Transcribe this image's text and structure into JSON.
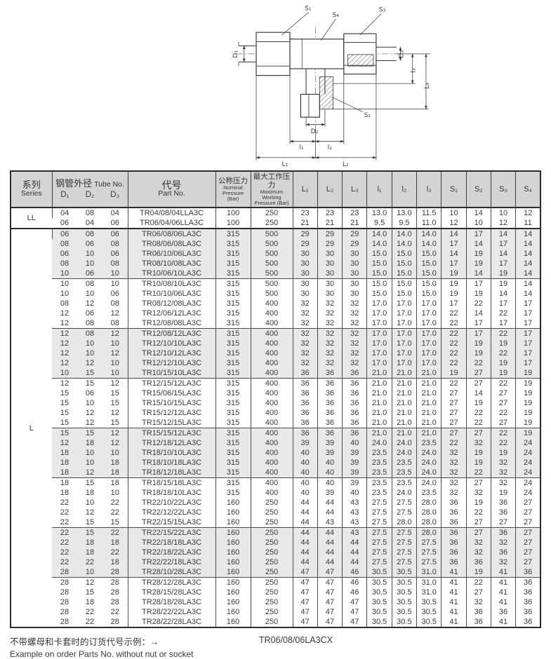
{
  "diagram": {
    "name": "tee-fitting-technical-drawing",
    "labels": {
      "s1": "S₁",
      "s2": "S₂",
      "s3": "S₃",
      "s4": "S₄",
      "d1": "D₁",
      "d2": "D₂",
      "d3": "D₃",
      "small_l1": "l₁",
      "small_l2": "l₂",
      "small_l3": "l₃",
      "big_l1": "L₁",
      "big_l2": "L₂",
      "big_l3": "L₃"
    }
  },
  "colors": {
    "header_bg": "#d4d4d4",
    "shaded_row_bg": "#e8e8e8",
    "border_dark": "#2b2b2b",
    "border_light": "#4a4a4a",
    "text": "#3a3a3a"
  },
  "table": {
    "header": {
      "series_zh": "系列",
      "series_en": "Series",
      "tube_zh": "钢管外径",
      "tube_en": "Tube No.",
      "d1": "D₁",
      "d2": "D₂",
      "d3": "D₃",
      "part_zh": "代号",
      "part_en": "Part No.",
      "nominal_zh": "公称压力",
      "nominal_en": "Nominal Pressure (Bar)",
      "max_zh": "最大工作压力",
      "max_en": "Maximum Working Pressure (Bar)",
      "dims": [
        "L₁",
        "L₂",
        "L₃",
        "l₁",
        "l₂",
        "l₃",
        "S₁",
        "S₂",
        "S₃",
        "S₄"
      ]
    },
    "sections": [
      {
        "series": "LL",
        "groups": [
          {
            "shaded": false,
            "rows": [
              [
                "04",
                "08",
                "04",
                "TR04/08/04LLA3C",
                "100",
                "250",
                "23",
                "23",
                "23",
                "13.0",
                "13.0",
                "11.5",
                "10",
                "14",
                "10",
                "12"
              ],
              [
                "06",
                "04",
                "06",
                "TR06/04/06LLA3C",
                "100",
                "250",
                "21",
                "21",
                "21",
                "9.5",
                "9.5",
                "11.0",
                "12",
                "10",
                "12",
                "11"
              ]
            ]
          }
        ]
      },
      {
        "series": "L",
        "groups": [
          {
            "shaded": true,
            "rows": [
              [
                "06",
                "08",
                "06",
                "TR06/08/06LA3C",
                "315",
                "500",
                "29",
                "29",
                "29",
                "14.0",
                "14.0",
                "14.0",
                "14",
                "17",
                "14",
                "14"
              ],
              [
                "08",
                "06",
                "08",
                "TR08/06/08LA3C",
                "315",
                "500",
                "29",
                "29",
                "29",
                "14.0",
                "14.0",
                "14.0",
                "17",
                "14",
                "17",
                "14"
              ],
              [
                "06",
                "10",
                "06",
                "TR06/10/06LA3C",
                "315",
                "500",
                "30",
                "30",
                "30",
                "15.0",
                "15.0",
                "15.0",
                "14",
                "19",
                "14",
                "14"
              ],
              [
                "08",
                "10",
                "08",
                "TR08/10/08LA3C",
                "315",
                "500",
                "30",
                "30",
                "30",
                "15.0",
                "15.0",
                "15.0",
                "17",
                "19",
                "17",
                "14"
              ],
              [
                "10",
                "06",
                "10",
                "TR10/06/10LA3C",
                "315",
                "500",
                "30",
                "30",
                "30",
                "15.0",
                "15.0",
                "15.0",
                "19",
                "14",
                "19",
                "14"
              ]
            ]
          },
          {
            "shaded": false,
            "rows": [
              [
                "10",
                "08",
                "10",
                "TR10/08/10LA3C",
                "315",
                "500",
                "30",
                "30",
                "30",
                "15.0",
                "15.0",
                "15.0",
                "19",
                "17",
                "19",
                "14"
              ],
              [
                "10",
                "10",
                "06",
                "TR10/10/06LA3C",
                "315",
                "500",
                "30",
                "30",
                "30",
                "15.0",
                "15.0",
                "15.0",
                "19",
                "19",
                "14",
                "14"
              ],
              [
                "08",
                "12",
                "08",
                "TR08/12/08LA3C",
                "315",
                "400",
                "32",
                "32",
                "32",
                "17.0",
                "17.0",
                "17.0",
                "17",
                "22",
                "17",
                "17"
              ],
              [
                "12",
                "06",
                "12",
                "TR12/06/12LA3C",
                "315",
                "400",
                "32",
                "32",
                "32",
                "17.0",
                "17.0",
                "17.0",
                "22",
                "14",
                "22",
                "17"
              ],
              [
                "12",
                "08",
                "08",
                "TR12/08/08LA3C",
                "315",
                "400",
                "32",
                "32",
                "32",
                "17.0",
                "17.0",
                "17.0",
                "22",
                "17",
                "17",
                "17"
              ]
            ]
          },
          {
            "shaded": true,
            "rows": [
              [
                "12",
                "08",
                "12",
                "TR12/08/12LA3C",
                "315",
                "400",
                "32",
                "32",
                "32",
                "17.0",
                "17.0",
                "17.0",
                "22",
                "17",
                "22",
                "17"
              ],
              [
                "12",
                "10",
                "10",
                "TR12/10/10LA3C",
                "315",
                "400",
                "32",
                "32",
                "32",
                "17.0",
                "17.0",
                "17.0",
                "22",
                "19",
                "19",
                "17"
              ],
              [
                "12",
                "10",
                "12",
                "TR12/10/12LA3C",
                "315",
                "400",
                "32",
                "32",
                "32",
                "17.0",
                "17.0",
                "17.0",
                "22",
                "19",
                "22",
                "17"
              ],
              [
                "12",
                "12",
                "10",
                "TR12/12/10LA3C",
                "315",
                "400",
                "32",
                "32",
                "32",
                "17.0",
                "17.0",
                "17.0",
                "22",
                "22",
                "19",
                "17"
              ],
              [
                "10",
                "15",
                "10",
                "TR10/15/10LA3C",
                "315",
                "400",
                "36",
                "36",
                "36",
                "21.0",
                "21.0",
                "21.0",
                "19",
                "27",
                "19",
                "19"
              ]
            ]
          },
          {
            "shaded": false,
            "rows": [
              [
                "12",
                "15",
                "12",
                "TR12/15/12LA3C",
                "315",
                "400",
                "36",
                "36",
                "36",
                "21.0",
                "21.0",
                "21.0",
                "22",
                "27",
                "22",
                "19"
              ],
              [
                "15",
                "06",
                "15",
                "TR15/06/15LA3C",
                "315",
                "400",
                "36",
                "36",
                "36",
                "21.0",
                "21.0",
                "21.0",
                "27",
                "14",
                "27",
                "19"
              ],
              [
                "15",
                "10",
                "15",
                "TR15/10/15LA3C",
                "315",
                "400",
                "36",
                "36",
                "36",
                "21.0",
                "21.0",
                "21.0",
                "27",
                "19",
                "27",
                "19"
              ],
              [
                "15",
                "12",
                "12",
                "TR15/12/12LA3C",
                "315",
                "400",
                "36",
                "36",
                "36",
                "21.0",
                "21.0",
                "21.0",
                "27",
                "22",
                "22",
                "19"
              ],
              [
                "15",
                "12",
                "15",
                "TR15/12/15LA3C",
                "315",
                "400",
                "36",
                "36",
                "36",
                "21.0",
                "21.0",
                "21.0",
                "27",
                "22",
                "27",
                "19"
              ]
            ]
          },
          {
            "shaded": true,
            "rows": [
              [
                "15",
                "15",
                "12",
                "TR15/15/12LA3C",
                "315",
                "400",
                "36",
                "36",
                "36",
                "21.0",
                "21.0",
                "21.0",
                "27",
                "27",
                "22",
                "19"
              ],
              [
                "12",
                "18",
                "12",
                "TR12/18/12LA3C",
                "315",
                "400",
                "39",
                "39",
                "40",
                "24.0",
                "24.0",
                "23.5",
                "22",
                "32",
                "22",
                "24"
              ],
              [
                "18",
                "10",
                "10",
                "TR18/10/10LA3C",
                "315",
                "400",
                "40",
                "39",
                "39",
                "23.5",
                "24.0",
                "24.0",
                "32",
                "19",
                "19",
                "24"
              ],
              [
                "18",
                "10",
                "18",
                "TR18/10/18LA3C",
                "315",
                "400",
                "40",
                "40",
                "39",
                "23.5",
                "23.5",
                "24.0",
                "32",
                "19",
                "32",
                "24"
              ],
              [
                "18",
                "12",
                "18",
                "TR18/12/18LA3C",
                "315",
                "400",
                "40",
                "40",
                "39",
                "23.5",
                "23.5",
                "24.0",
                "32",
                "22",
                "32",
                "24"
              ]
            ]
          },
          {
            "shaded": false,
            "rows": [
              [
                "18",
                "15",
                "18",
                "TR18/15/18LA3C",
                "315",
                "400",
                "40",
                "40",
                "39",
                "23.5",
                "23.5",
                "24.0",
                "32",
                "27",
                "32",
                "24"
              ],
              [
                "18",
                "18",
                "10",
                "TR18/18/10LA3C",
                "315",
                "400",
                "40",
                "39",
                "40",
                "23.5",
                "24.0",
                "23.5",
                "32",
                "32",
                "19",
                "24"
              ],
              [
                "22",
                "10",
                "22",
                "TR22/10/22LA3C",
                "160",
                "250",
                "44",
                "44",
                "43",
                "27.5",
                "27.5",
                "28.0",
                "36",
                "19",
                "36",
                "27"
              ],
              [
                "22",
                "12",
                "22",
                "TR22/12/22LA3C",
                "160",
                "250",
                "44",
                "44",
                "43",
                "27.5",
                "27.5",
                "28.0",
                "36",
                "22",
                "36",
                "27"
              ],
              [
                "22",
                "15",
                "15",
                "TR22/15/15LA3C",
                "160",
                "250",
                "44",
                "43",
                "43",
                "27.5",
                "28.0",
                "28.0",
                "36",
                "27",
                "27",
                "27"
              ]
            ]
          },
          {
            "shaded": true,
            "rows": [
              [
                "22",
                "15",
                "22",
                "TR22/15/22LA3C",
                "160",
                "250",
                "44",
                "44",
                "43",
                "27.5",
                "27.5",
                "28.0",
                "36",
                "27",
                "36",
                "27"
              ],
              [
                "22",
                "18",
                "18",
                "TR22/18/18LA3C",
                "160",
                "250",
                "44",
                "44",
                "44",
                "27.5",
                "27.5",
                "27.5",
                "36",
                "32",
                "32",
                "27"
              ],
              [
                "22",
                "18",
                "22",
                "TR22/18/22LA3C",
                "160",
                "250",
                "44",
                "44",
                "44",
                "27.5",
                "27.5",
                "27.5",
                "36",
                "32",
                "36",
                "27"
              ],
              [
                "22",
                "22",
                "18",
                "TR22/22/18LA3C",
                "160",
                "250",
                "44",
                "44",
                "44",
                "27.5",
                "27.5",
                "27.5",
                "36",
                "36",
                "32",
                "27"
              ],
              [
                "28",
                "10",
                "28",
                "TR28/10/28LA3C",
                "160",
                "250",
                "47",
                "47",
                "46",
                "30.5",
                "30.5",
                "31.0",
                "41",
                "19",
                "41",
                "36"
              ]
            ]
          },
          {
            "shaded": false,
            "rows": [
              [
                "28",
                "12",
                "28",
                "TR28/12/28LA3C",
                "160",
                "250",
                "47",
                "47",
                "46",
                "30.5",
                "30.5",
                "31.0",
                "41",
                "22",
                "41",
                "36"
              ],
              [
                "28",
                "15",
                "28",
                "TR28/15/28LA3C",
                "160",
                "250",
                "47",
                "47",
                "46",
                "30.5",
                "30.5",
                "31.0",
                "41",
                "27",
                "41",
                "36"
              ],
              [
                "28",
                "18",
                "28",
                "TR28/18/28LA3C",
                "160",
                "250",
                "47",
                "47",
                "47",
                "30.5",
                "30.5",
                "30.5",
                "41",
                "32",
                "41",
                "36"
              ],
              [
                "28",
                "22",
                "22",
                "TR28/22/22LA3C",
                "160",
                "250",
                "47",
                "47",
                "47",
                "30.5",
                "30.5",
                "30.5",
                "41",
                "36",
                "36",
                "36"
              ],
              [
                "28",
                "22",
                "28",
                "TR28/22/28LA3C",
                "160",
                "250",
                "47",
                "47",
                "47",
                "30.5",
                "30.5",
                "30.5",
                "41",
                "36",
                "41",
                "36"
              ]
            ]
          }
        ]
      }
    ]
  },
  "footer": {
    "note_zh": "不带螺母和卡套时的订货代号示例：→",
    "note_en": "Example on order Parts No. without nut or socket",
    "example_code": "TR06/08/06LA3CX"
  }
}
